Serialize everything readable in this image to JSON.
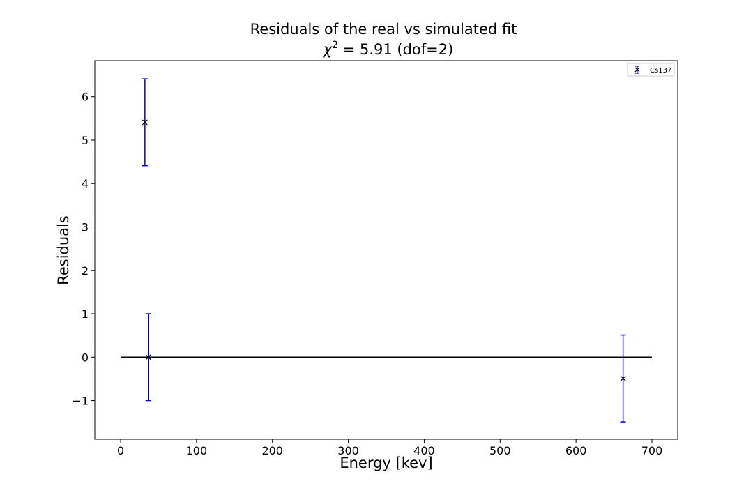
{
  "chart_data": {
    "type": "scatter",
    "title": "Residuals of the real vs simulated fit",
    "subtitle": {
      "symbol": "χ",
      "exponent": "2",
      "text": " = 5.91 (dof=2)"
    },
    "xlabel": "Energy [kev]",
    "ylabel": "Residuals",
    "xlim": [
      -34,
      734
    ],
    "ylim": [
      -1.89,
      6.83
    ],
    "xticks": [
      0,
      100,
      200,
      300,
      400,
      500,
      600,
      700
    ],
    "xtick_labels": [
      "0",
      "100",
      "200",
      "300",
      "400",
      "500",
      "600",
      "700"
    ],
    "yticks": [
      -1,
      0,
      1,
      2,
      3,
      4,
      5,
      6
    ],
    "ytick_labels": [
      "−1",
      "0",
      "1",
      "2",
      "3",
      "4",
      "5",
      "6"
    ],
    "grid": false,
    "legend": {
      "placement": "top-right",
      "entries": [
        "Cs137"
      ]
    },
    "reference_line": {
      "y": 0,
      "x_start": 0,
      "x_end": 700,
      "color": "#000000"
    },
    "series": [
      {
        "name": "Cs137",
        "marker": "x",
        "marker_color": "#000000",
        "errorbar_color": "#0000cc",
        "points": [
          {
            "x": 32,
            "y": 5.41,
            "yerr": 1.0
          },
          {
            "x": 36.5,
            "y": 0.0,
            "yerr": 1.0
          },
          {
            "x": 662,
            "y": -0.49,
            "yerr": 1.0
          }
        ]
      }
    ]
  }
}
